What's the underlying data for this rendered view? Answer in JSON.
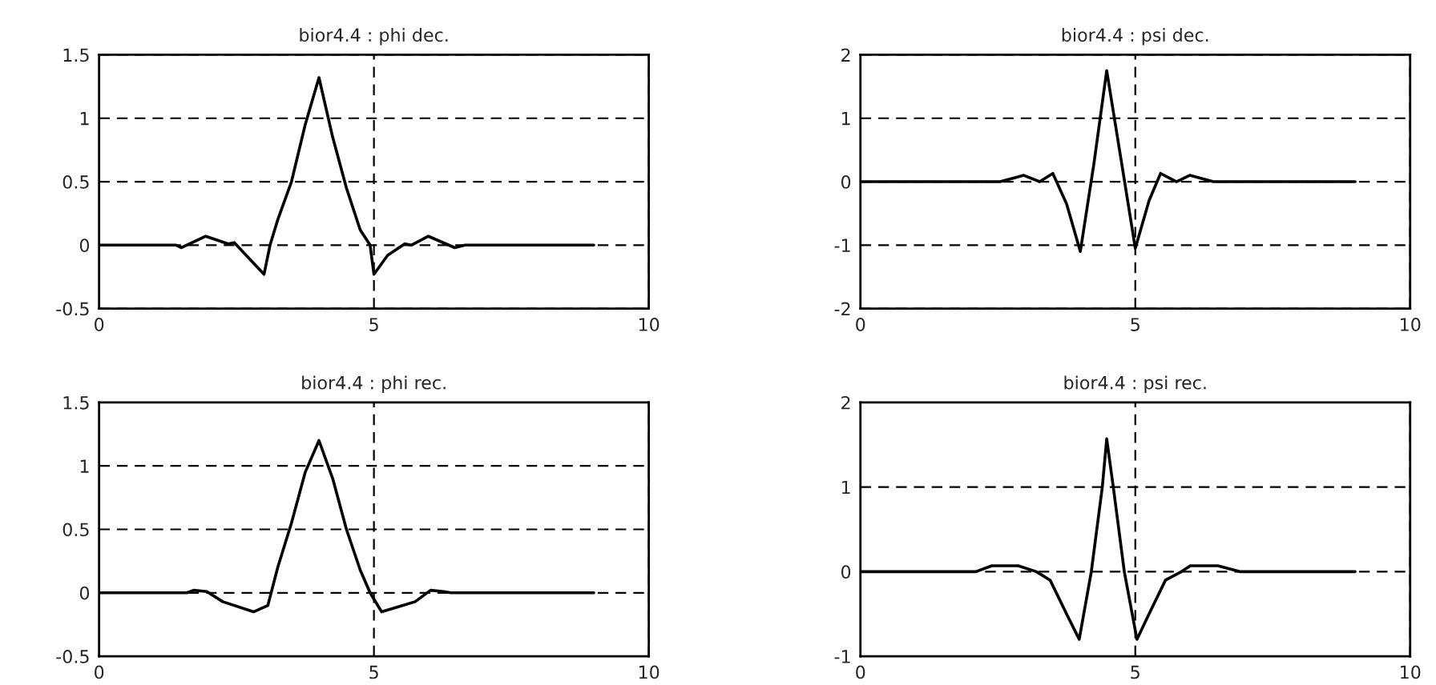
{
  "chart_data": [
    {
      "type": "line",
      "title": "bior4.4 : phi dec.",
      "xlim": [
        0,
        10
      ],
      "xticks": [
        0,
        5,
        10
      ],
      "ylim": [
        -0.5,
        1.5
      ],
      "yticks": [
        -0.5,
        0,
        0.5,
        1,
        1.5
      ],
      "grid": true,
      "series": [
        {
          "color": "#000000",
          "x": [
            0,
            1.4,
            1.5,
            1.94,
            2.35,
            2.46,
            3.0,
            3.11,
            3.25,
            3.5,
            3.75,
            4.0,
            4.25,
            4.5,
            4.75,
            4.93,
            5.0,
            5.25,
            5.56,
            5.68,
            5.99,
            6.47,
            6.66,
            9.0
          ],
          "values": [
            0,
            0,
            -0.02,
            0.07,
            0.01,
            0.02,
            -0.23,
            0,
            0.2,
            0.5,
            0.95,
            1.32,
            0.85,
            0.45,
            0.12,
            0,
            -0.23,
            -0.08,
            0.01,
            0,
            0.07,
            -0.02,
            0,
            0
          ]
        }
      ]
    },
    {
      "type": "line",
      "title": "bior4.4 : psi dec.",
      "xlim": [
        0,
        10
      ],
      "xticks": [
        0,
        5,
        10
      ],
      "ylim": [
        -2,
        2
      ],
      "yticks": [
        -2,
        -1,
        0,
        1,
        2
      ],
      "grid": true,
      "series": [
        {
          "color": "#000000",
          "x": [
            0,
            2.54,
            2.97,
            3.26,
            3.5,
            3.75,
            4.0,
            4.25,
            4.48,
            4.75,
            5.0,
            5.25,
            5.46,
            5.75,
            5.99,
            6.42,
            9.0
          ],
          "values": [
            0,
            0,
            0.1,
            0,
            0.13,
            -0.35,
            -1.1,
            0.3,
            1.75,
            0.3,
            -1.05,
            -0.3,
            0.13,
            0,
            0.1,
            0,
            0
          ]
        }
      ]
    },
    {
      "type": "line",
      "title": "bior4.4 : phi rec.",
      "xlim": [
        0,
        10
      ],
      "xticks": [
        0,
        5,
        10
      ],
      "ylim": [
        -0.5,
        1.5
      ],
      "yticks": [
        -0.5,
        0,
        0.5,
        1,
        1.5
      ],
      "grid": true,
      "series": [
        {
          "color": "#000000",
          "x": [
            0,
            1.6,
            1.72,
            1.96,
            2.25,
            2.81,
            3.07,
            3.25,
            3.5,
            3.75,
            4.0,
            4.25,
            4.5,
            4.75,
            4.93,
            5.14,
            5.75,
            6.03,
            6.27,
            6.4,
            9.0
          ],
          "values": [
            0,
            0,
            0.02,
            0.01,
            -0.07,
            -0.15,
            -0.1,
            0.2,
            0.55,
            0.95,
            1.2,
            0.9,
            0.5,
            0.18,
            0,
            -0.15,
            -0.07,
            0.02,
            0.01,
            0,
            0
          ]
        }
      ]
    },
    {
      "type": "line",
      "title": "bior4.4 : psi rec.",
      "xlim": [
        0,
        10
      ],
      "xticks": [
        0,
        5,
        10
      ],
      "ylim": [
        -1,
        2
      ],
      "yticks": [
        -1,
        0,
        1,
        2
      ],
      "grid": true,
      "series": [
        {
          "color": "#000000",
          "x": [
            0,
            2.1,
            2.39,
            2.87,
            3.2,
            3.45,
            3.75,
            3.98,
            4.2,
            4.4,
            4.48,
            4.6,
            4.8,
            5.03,
            5.25,
            5.55,
            5.84,
            6.0,
            6.5,
            6.9,
            9.0
          ],
          "values": [
            0,
            0,
            0.07,
            0.07,
            0,
            -0.1,
            -0.5,
            -0.8,
            0,
            1.0,
            1.57,
            1.0,
            0,
            -0.8,
            -0.5,
            -0.1,
            0,
            0.07,
            0.07,
            0,
            0
          ]
        }
      ]
    }
  ]
}
